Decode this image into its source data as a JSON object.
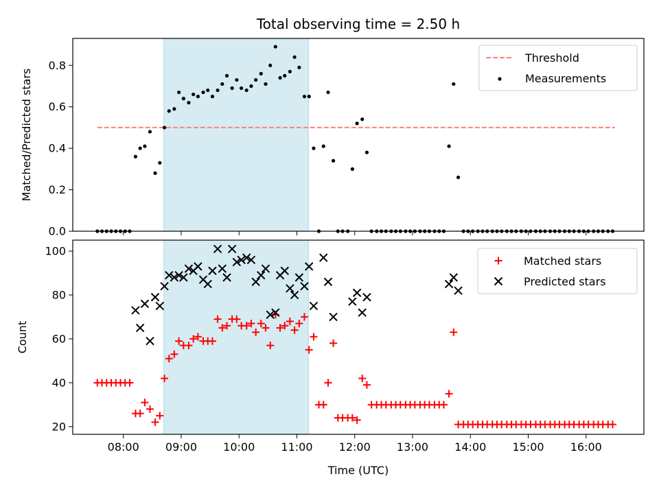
{
  "chart_data": [
    {
      "type": "scatter",
      "title": "Total observing time = 2.50 h",
      "xlabel": "",
      "ylabel": "Matched/Predicted stars",
      "xlim": [
        7.125,
        17.0
      ],
      "ylim": [
        0.0,
        0.93
      ],
      "yticks": [
        0.0,
        0.2,
        0.4,
        0.6,
        0.8
      ],
      "ytick_labels": [
        "0.0",
        "0.2",
        "0.4",
        "0.6",
        "0.8"
      ],
      "grid": false,
      "legend_position": "top-right",
      "shaded_interval": [
        8.7,
        11.2
      ],
      "shaded_color": "#add8e6",
      "series": [
        {
          "name": "Threshold",
          "type": "line",
          "style": "dashed",
          "color": "#ff7f7f",
          "x": [
            7.55,
            16.5
          ],
          "y": [
            0.5,
            0.5
          ]
        },
        {
          "name": "Measurements",
          "type": "scatter",
          "marker": "dot",
          "color": "#000000",
          "x": [
            7.55,
            7.63,
            7.71,
            7.79,
            7.87,
            7.95,
            8.03,
            8.11,
            8.21,
            8.29,
            8.37,
            8.46,
            8.55,
            8.63,
            8.71,
            8.79,
            8.88,
            8.96,
            9.04,
            9.13,
            9.21,
            9.29,
            9.38,
            9.46,
            9.54,
            9.63,
            9.71,
            9.79,
            9.88,
            9.96,
            10.04,
            10.13,
            10.21,
            10.29,
            10.38,
            10.46,
            10.54,
            10.63,
            10.71,
            10.79,
            10.88,
            10.96,
            11.04,
            11.13,
            11.21,
            11.29,
            11.38,
            11.46,
            11.54,
            11.63,
            11.71,
            11.79,
            11.88,
            11.96,
            12.04,
            12.13,
            12.21,
            12.29,
            12.38,
            12.46,
            12.54,
            12.63,
            12.71,
            12.79,
            12.88,
            12.96,
            13.04,
            13.13,
            13.21,
            13.29,
            13.38,
            13.46,
            13.54,
            13.63,
            13.71,
            13.79,
            13.88,
            13.96,
            14.04,
            14.13,
            14.21,
            14.29,
            14.38,
            14.46,
            14.54,
            14.63,
            14.71,
            14.79,
            14.88,
            14.96,
            15.04,
            15.13,
            15.21,
            15.29,
            15.38,
            15.46,
            15.54,
            15.63,
            15.71,
            15.79,
            15.88,
            15.96,
            16.04,
            16.13,
            16.21,
            16.29,
            16.38,
            16.46
          ],
          "y": [
            0.0,
            0.0,
            0.0,
            0.0,
            0.0,
            0.0,
            0.0,
            0.0,
            0.36,
            0.4,
            0.41,
            0.48,
            0.28,
            0.33,
            0.5,
            0.58,
            0.59,
            0.67,
            0.64,
            0.62,
            0.66,
            0.65,
            0.67,
            0.68,
            0.65,
            0.68,
            0.71,
            0.75,
            0.69,
            0.73,
            0.69,
            0.68,
            0.7,
            0.73,
            0.76,
            0.71,
            0.8,
            0.89,
            0.74,
            0.75,
            0.77,
            0.84,
            0.79,
            0.65,
            0.65,
            0.4,
            0.0,
            0.41,
            0.67,
            0.34,
            0.0,
            0.0,
            0.0,
            0.3,
            0.52,
            0.54,
            0.38,
            0.0,
            0.0,
            0.0,
            0.0,
            0.0,
            0.0,
            0.0,
            0.0,
            0.0,
            0.0,
            0.0,
            0.0,
            0.0,
            0.0,
            0.0,
            0.0,
            0.41,
            0.71,
            0.26,
            0.0,
            0.0,
            0.0,
            0.0,
            0.0,
            0.0,
            0.0,
            0.0,
            0.0,
            0.0,
            0.0,
            0.0,
            0.0,
            0.0,
            0.0,
            0.0,
            0.0,
            0.0,
            0.0,
            0.0,
            0.0,
            0.0,
            0.0,
            0.0,
            0.0,
            0.0,
            0.0,
            0.0,
            0.0,
            0.0,
            0.0,
            0.0
          ]
        }
      ]
    },
    {
      "type": "scatter",
      "title": "",
      "xlabel": "Time (UTC)",
      "ylabel": "Count",
      "xlim": [
        7.125,
        17.0
      ],
      "ylim": [
        16.5,
        105
      ],
      "xticks": [
        8,
        9,
        10,
        11,
        12,
        13,
        14,
        15,
        16
      ],
      "xtick_labels": [
        "08:00",
        "09:00",
        "10:00",
        "11:00",
        "12:00",
        "13:00",
        "14:00",
        "15:00",
        "16:00"
      ],
      "yticks": [
        20,
        40,
        60,
        80,
        100
      ],
      "ytick_labels": [
        "20",
        "40",
        "60",
        "80",
        "100"
      ],
      "grid": false,
      "legend_position": "top-right",
      "shaded_interval": [
        8.7,
        11.2
      ],
      "shaded_color": "#add8e6",
      "series": [
        {
          "name": "Matched stars",
          "marker": "plus",
          "color": "#ff0000",
          "x": [
            7.55,
            7.63,
            7.71,
            7.79,
            7.87,
            7.95,
            8.03,
            8.11,
            8.21,
            8.29,
            8.37,
            8.46,
            8.55,
            8.63,
            8.71,
            8.79,
            8.88,
            8.96,
            9.04,
            9.13,
            9.21,
            9.29,
            9.38,
            9.46,
            9.54,
            9.63,
            9.71,
            9.79,
            9.88,
            9.96,
            10.04,
            10.13,
            10.21,
            10.29,
            10.38,
            10.46,
            10.54,
            10.63,
            10.71,
            10.79,
            10.88,
            10.96,
            11.04,
            11.13,
            11.21,
            11.29,
            11.38,
            11.46,
            11.54,
            11.63,
            11.71,
            11.79,
            11.88,
            11.96,
            12.04,
            12.13,
            12.21,
            12.29,
            12.38,
            12.46,
            12.54,
            12.63,
            12.71,
            12.79,
            12.88,
            12.96,
            13.04,
            13.13,
            13.21,
            13.29,
            13.38,
            13.46,
            13.54,
            13.63,
            13.71,
            13.79,
            13.88,
            13.96,
            14.04,
            14.13,
            14.21,
            14.29,
            14.38,
            14.46,
            14.54,
            14.63,
            14.71,
            14.79,
            14.88,
            14.96,
            15.04,
            15.13,
            15.21,
            15.29,
            15.38,
            15.46,
            15.54,
            15.63,
            15.71,
            15.79,
            15.88,
            15.96,
            16.04,
            16.13,
            16.21,
            16.29,
            16.38,
            16.46
          ],
          "y": [
            40,
            40,
            40,
            40,
            40,
            40,
            40,
            40,
            26,
            26,
            31,
            28,
            22,
            25,
            42,
            51,
            53,
            59,
            57,
            57,
            60,
            61,
            59,
            59,
            59,
            69,
            65,
            66,
            69,
            69,
            66,
            66,
            67,
            63,
            67,
            65,
            57,
            71,
            65,
            66,
            68,
            64,
            67,
            70,
            55,
            61,
            30,
            30,
            40,
            58,
            24,
            24,
            24,
            24,
            23,
            42,
            39,
            30,
            30,
            30,
            30,
            30,
            30,
            30,
            30,
            30,
            30,
            30,
            30,
            30,
            30,
            30,
            30,
            35,
            63,
            21,
            21,
            21,
            21,
            21,
            21,
            21,
            21,
            21,
            21,
            21,
            21,
            21,
            21,
            21,
            21,
            21,
            21,
            21,
            21,
            21,
            21,
            21,
            21,
            21,
            21,
            21,
            21,
            21,
            21,
            21,
            21,
            21
          ]
        },
        {
          "name": "Predicted stars",
          "marker": "x",
          "color": "#000000",
          "x": [
            8.21,
            8.29,
            8.37,
            8.46,
            8.55,
            8.63,
            8.71,
            8.79,
            8.88,
            8.96,
            9.04,
            9.13,
            9.21,
            9.29,
            9.38,
            9.46,
            9.54,
            9.63,
            9.71,
            9.79,
            9.88,
            9.96,
            10.04,
            10.13,
            10.21,
            10.29,
            10.38,
            10.46,
            10.54,
            10.63,
            10.71,
            10.79,
            10.88,
            10.96,
            11.04,
            11.13,
            11.21,
            11.29,
            11.46,
            11.54,
            11.63,
            11.96,
            12.04,
            12.13,
            12.21,
            13.63,
            13.71,
            13.79
          ],
          "y": [
            73,
            65,
            76,
            59,
            79,
            75,
            84,
            89,
            88,
            89,
            88,
            92,
            91,
            93,
            87,
            85,
            91,
            101,
            92,
            88,
            101,
            95,
            96,
            97,
            96,
            86,
            89,
            92,
            71,
            72,
            89,
            91,
            83,
            80,
            88,
            84,
            93,
            75,
            97,
            86,
            70,
            77,
            81,
            72,
            79,
            85,
            88,
            82
          ]
        }
      ]
    }
  ]
}
